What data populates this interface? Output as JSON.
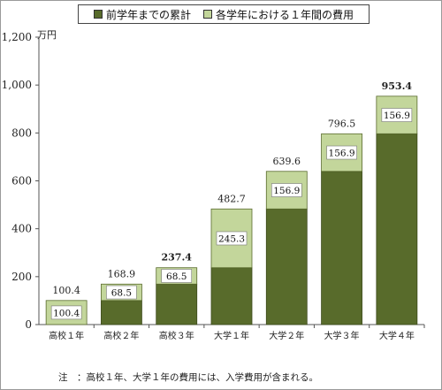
{
  "colors": {
    "cumulative": "#586b2b",
    "annual": "#c3d69b",
    "axis": "#555555"
  },
  "legend": {
    "cumulative_label": "前学年までの累計",
    "annual_label": "各学年における１年間の費用"
  },
  "unit_label": "万円",
  "note": "注　：高校１年、大学１年の費用には、入学費用が含まれる。",
  "chart_data": {
    "type": "bar",
    "stacked": true,
    "categories": [
      "高校１年",
      "高校２年",
      "高校３年",
      "大学１年",
      "大学２年",
      "大学３年",
      "大学４年"
    ],
    "series": [
      {
        "name": "前学年までの累計",
        "values": [
          0,
          100.4,
          168.9,
          237.4,
          482.7,
          639.6,
          796.5
        ]
      },
      {
        "name": "各学年における１年間の費用",
        "values": [
          100.4,
          68.5,
          68.5,
          245.3,
          156.9,
          156.9,
          156.9
        ]
      }
    ],
    "segment_labels": [
      "100.4",
      "68.5",
      "68.5",
      "245.3",
      "156.9",
      "156.9",
      "156.9"
    ],
    "totals": [
      100.4,
      168.9,
      237.4,
      482.7,
      639.6,
      796.5,
      953.4
    ],
    "total_labels": [
      "100.4",
      "168.9",
      "237.4",
      "482.7",
      "639.6",
      "796.5",
      "953.4"
    ],
    "bold_totals": [
      false,
      false,
      true,
      false,
      false,
      false,
      true
    ],
    "ylim": [
      0,
      1200
    ],
    "yticks": [
      0,
      200,
      400,
      600,
      800,
      1000,
      1200
    ],
    "ytick_labels": [
      "0",
      "200",
      "400",
      "600",
      "800",
      "1,000",
      "1,200"
    ],
    "grid": false,
    "legend_position": "top"
  }
}
